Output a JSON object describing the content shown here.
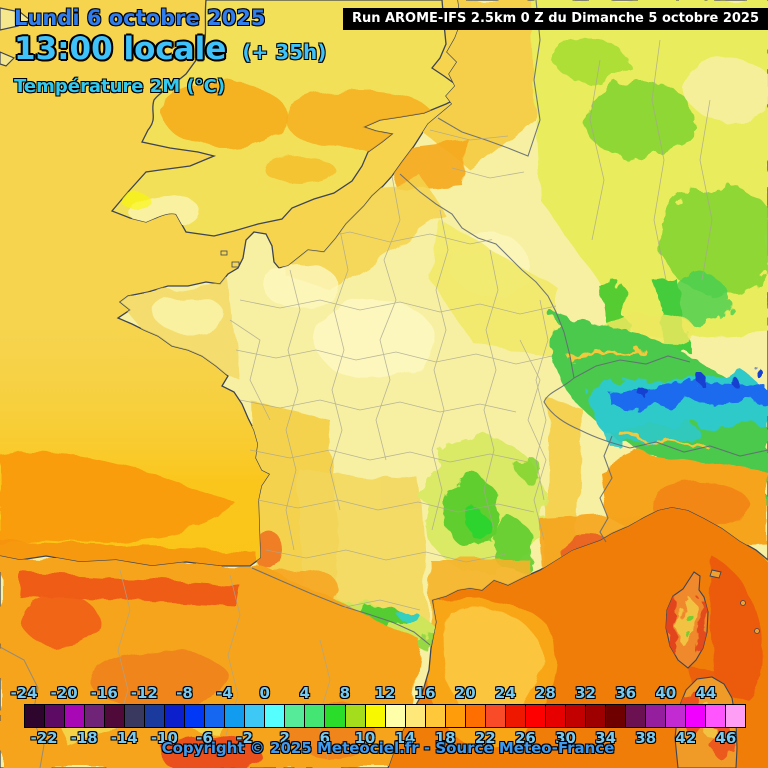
{
  "header": {
    "date": "Lundi 6 octobre 2025",
    "time": "13:00 locale",
    "offset": "(+ 35h)",
    "variable": "Température 2M (°C)"
  },
  "run_box": {
    "text": "Run AROME-IFS 2.5km 0 Z du Dimanche 5 octobre 2025"
  },
  "footer": {
    "copyright": "Copyright © 2025 Meteociel.fr - Source Meteo-France"
  },
  "legend": {
    "unit": "°C",
    "min_value": -24,
    "step": 2,
    "colors": [
      "#2d052d",
      "#5c0a64",
      "#a807b5",
      "#6f2478",
      "#4f0a3a",
      "#39395f",
      "#1a3a9e",
      "#0b1fcd",
      "#0038f5",
      "#1567f2",
      "#129cf0",
      "#3ec8f6",
      "#55ffff",
      "#55eb99",
      "#43e673",
      "#2bdd2b",
      "#a3dd1c",
      "#f8f800",
      "#ffffaa",
      "#ffe87a",
      "#ffc83a",
      "#ff9c0a",
      "#ff6e00",
      "#fa4b28",
      "#ee1800",
      "#ff0000",
      "#e60000",
      "#c30000",
      "#9e0000",
      "#6e0000",
      "#6b1050",
      "#951e9e",
      "#c32bd2",
      "#f200ff",
      "#ff55ff",
      "#ff9ef5"
    ],
    "labels_top": [
      "-24",
      "-20",
      "-16",
      "-12",
      "-8",
      "-4",
      "0",
      "4",
      "8",
      "12",
      "16",
      "20",
      "24",
      "28",
      "32",
      "36",
      "40",
      "44"
    ],
    "labels_bottom": [
      "-22",
      "-18",
      "-14",
      "-10",
      "-6",
      "-2",
      "2",
      "6",
      "10",
      "14",
      "18",
      "22",
      "26",
      "30",
      "34",
      "38",
      "42",
      "46"
    ]
  },
  "map": {
    "kind": "temperature 2m forecast map, France / Western Europe",
    "key_colors": {
      "sea_channel": "#f6d44e",
      "sea_biscay_warm": "#f99d08",
      "sea_mediterranean": "#f07d08",
      "gulf_of_lion_patch": "#fbc53e",
      "land_france_plain": "#f7f0a2",
      "germany_hills_green": "#7fd42e",
      "alps_cold_blue": "#1e6aee",
      "alps_cyan": "#2fc9c9",
      "spain_warm_orange": "#f6a41e",
      "spain_hot_red": "#ef5b17",
      "coastline": "#3d4454"
    },
    "readings": [
      {
        "region": "Central France",
        "approx_temp_c": "12–14"
      },
      {
        "region": "English Channel / seas",
        "approx_temp_c": "16–18"
      },
      {
        "region": "Germany hills",
        "approx_temp_c": "6–10"
      },
      {
        "region": "Alps high ridges",
        "approx_temp_c": "-10–2"
      },
      {
        "region": "Mediterranean",
        "approx_temp_c": "20–22"
      },
      {
        "region": "Spain interior",
        "approx_temp_c": "22–26"
      },
      {
        "region": "Corsica coast",
        "approx_temp_c": "22–26"
      }
    ]
  }
}
